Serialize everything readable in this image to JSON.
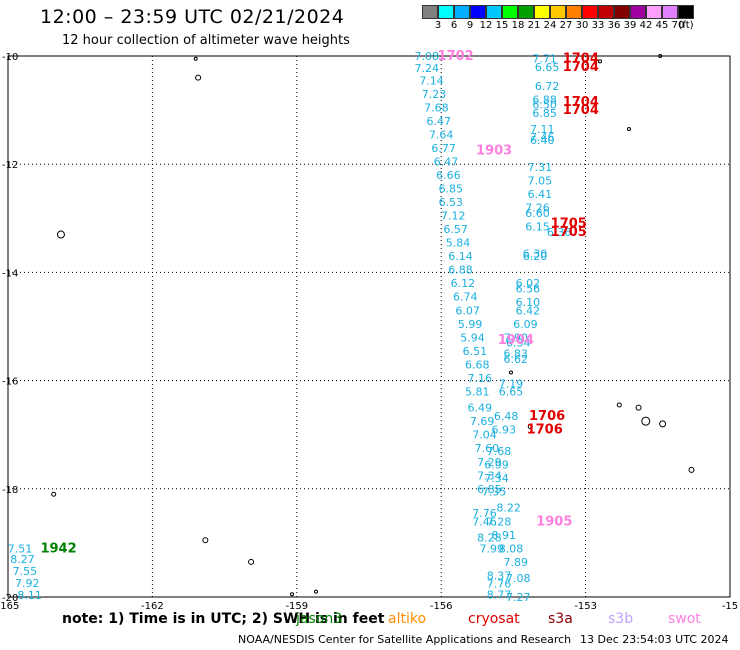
{
  "title": "12:00 – 23:59 UTC 02/21/2024",
  "subtitle": "12 hour collection of altimeter wave heights",
  "colorbar": {
    "colors": [
      "#808080",
      "#00ffff",
      "#00b0ff",
      "#0000ff",
      "#00c8ff",
      "#00ff00",
      "#00a000",
      "#ffff00",
      "#ffc800",
      "#ff8000",
      "#ff0000",
      "#c00000",
      "#800000",
      "#a000a0",
      "#ffa0ff",
      "#e080ff",
      "#000000"
    ],
    "ticks": [
      "3",
      "6",
      "9",
      "12",
      "15",
      "18",
      "21",
      "24",
      "27",
      "30",
      "33",
      "36",
      "39",
      "42",
      "45",
      "70",
      "(ft)"
    ]
  },
  "map": {
    "x_ticks": [
      "-165",
      "-162",
      "-159",
      "-156",
      "-153",
      "-15"
    ],
    "y_ticks": [
      "-10",
      "-12",
      "-14",
      "-16",
      "-18",
      "-20"
    ],
    "colors": {
      "cyan": "#1ab0e0",
      "red": "#e00000",
      "pink": "#ff80e0",
      "green": "#008000"
    }
  },
  "wave_labels": [
    {
      "text": "7.08",
      "lon": -156.3,
      "lat": -10.0,
      "c": "cyan"
    },
    {
      "text": "7.24",
      "lon": -156.3,
      "lat": -10.22,
      "c": "cyan"
    },
    {
      "text": "7.14",
      "lon": -156.2,
      "lat": -10.45,
      "c": "cyan"
    },
    {
      "text": "7.23",
      "lon": -156.15,
      "lat": -10.7,
      "c": "cyan"
    },
    {
      "text": "7.68",
      "lon": -156.1,
      "lat": -10.95,
      "c": "cyan"
    },
    {
      "text": "6.47",
      "lon": -156.05,
      "lat": -11.2,
      "c": "cyan"
    },
    {
      "text": "7.64",
      "lon": -156.0,
      "lat": -11.45,
      "c": "cyan"
    },
    {
      "text": "6.77",
      "lon": -155.95,
      "lat": -11.7,
      "c": "cyan"
    },
    {
      "text": "6.47",
      "lon": -155.9,
      "lat": -11.95,
      "c": "cyan"
    },
    {
      "text": "6.66",
      "lon": -155.85,
      "lat": -12.2,
      "c": "cyan"
    },
    {
      "text": "6.85",
      "lon": -155.8,
      "lat": -12.45,
      "c": "cyan"
    },
    {
      "text": "6.53",
      "lon": -155.8,
      "lat": -12.7,
      "c": "cyan"
    },
    {
      "text": "7.12",
      "lon": -155.75,
      "lat": -12.95,
      "c": "cyan"
    },
    {
      "text": "6.57",
      "lon": -155.7,
      "lat": -13.2,
      "c": "cyan"
    },
    {
      "text": "5.84",
      "lon": -155.65,
      "lat": -13.45,
      "c": "cyan"
    },
    {
      "text": "6.14",
      "lon": -155.6,
      "lat": -13.7,
      "c": "cyan"
    },
    {
      "text": "6.88",
      "lon": -155.6,
      "lat": -13.95,
      "c": "cyan"
    },
    {
      "text": "6.12",
      "lon": -155.55,
      "lat": -14.2,
      "c": "cyan"
    },
    {
      "text": "6.74",
      "lon": -155.5,
      "lat": -14.45,
      "c": "cyan"
    },
    {
      "text": "6.07",
      "lon": -155.45,
      "lat": -14.7,
      "c": "cyan"
    },
    {
      "text": "5.99",
      "lon": -155.4,
      "lat": -14.95,
      "c": "cyan"
    },
    {
      "text": "5.94",
      "lon": -155.35,
      "lat": -15.2,
      "c": "cyan"
    },
    {
      "text": "6.51",
      "lon": -155.3,
      "lat": -15.45,
      "c": "cyan"
    },
    {
      "text": "6.68",
      "lon": -155.25,
      "lat": -15.7,
      "c": "cyan"
    },
    {
      "text": "7.16",
      "lon": -155.2,
      "lat": -15.95,
      "c": "cyan"
    },
    {
      "text": "5.81",
      "lon": -155.25,
      "lat": -16.2,
      "c": "cyan"
    },
    {
      "text": "6.49",
      "lon": -155.2,
      "lat": -16.5,
      "c": "cyan"
    },
    {
      "text": "7.69",
      "lon": -155.15,
      "lat": -16.75,
      "c": "cyan"
    },
    {
      "text": "7.04",
      "lon": -155.1,
      "lat": -17.0,
      "c": "cyan"
    },
    {
      "text": "7.60",
      "lon": -155.05,
      "lat": -17.25,
      "c": "cyan"
    },
    {
      "text": "7.29",
      "lon": -155.0,
      "lat": -17.5,
      "c": "cyan"
    },
    {
      "text": "7.34",
      "lon": -155.0,
      "lat": -17.75,
      "c": "cyan"
    },
    {
      "text": "6.85",
      "lon": -155.0,
      "lat": -18.0,
      "c": "cyan"
    },
    {
      "text": "7.76",
      "lon": -155.1,
      "lat": -18.45,
      "c": "cyan"
    },
    {
      "text": "7.46",
      "lon": -155.1,
      "lat": -18.6,
      "c": "cyan"
    },
    {
      "text": "8.28",
      "lon": -155.0,
      "lat": -18.9,
      "c": "cyan"
    },
    {
      "text": "7.99",
      "lon": -154.95,
      "lat": -19.1,
      "c": "cyan"
    },
    {
      "text": "8.37",
      "lon": -154.8,
      "lat": -19.6,
      "c": "cyan"
    },
    {
      "text": "7.76",
      "lon": -154.8,
      "lat": -19.75,
      "c": "cyan"
    },
    {
      "text": "8.77",
      "lon": -154.8,
      "lat": -19.95,
      "c": "cyan"
    },
    {
      "text": "7.71",
      "lon": -153.85,
      "lat": -10.05,
      "c": "cyan"
    },
    {
      "text": "6.65",
      "lon": -153.8,
      "lat": -10.2,
      "c": "cyan"
    },
    {
      "text": "6.72",
      "lon": -153.8,
      "lat": -10.55,
      "c": "cyan"
    },
    {
      "text": "6.88",
      "lon": -153.85,
      "lat": -10.8,
      "c": "cyan"
    },
    {
      "text": "6.50",
      "lon": -153.85,
      "lat": -10.9,
      "c": "cyan"
    },
    {
      "text": "6.85",
      "lon": -153.85,
      "lat": -11.05,
      "c": "cyan"
    },
    {
      "text": "7.11",
      "lon": -153.9,
      "lat": -11.35,
      "c": "cyan"
    },
    {
      "text": "7.46",
      "lon": -153.9,
      "lat": -11.5,
      "c": "cyan"
    },
    {
      "text": "6.40",
      "lon": -153.9,
      "lat": -11.55,
      "c": "cyan"
    },
    {
      "text": "7.31",
      "lon": -153.95,
      "lat": -12.05,
      "c": "cyan"
    },
    {
      "text": "7.05",
      "lon": -153.95,
      "lat": -12.3,
      "c": "cyan"
    },
    {
      "text": "6.41",
      "lon": -153.95,
      "lat": -12.55,
      "c": "cyan"
    },
    {
      "text": "7.26",
      "lon": -154.0,
      "lat": -12.8,
      "c": "cyan"
    },
    {
      "text": "6.60",
      "lon": -154.0,
      "lat": -12.9,
      "c": "cyan"
    },
    {
      "text": "6.15",
      "lon": -154.0,
      "lat": -13.15,
      "c": "cyan"
    },
    {
      "text": "6.36",
      "lon": -153.55,
      "lat": -13.25,
      "c": "cyan"
    },
    {
      "text": "6.30",
      "lon": -154.05,
      "lat": -13.65,
      "c": "cyan"
    },
    {
      "text": "6.20",
      "lon": -154.05,
      "lat": -13.7,
      "c": "cyan"
    },
    {
      "text": "6.02",
      "lon": -154.2,
      "lat": -14.2,
      "c": "cyan"
    },
    {
      "text": "6.56",
      "lon": -154.2,
      "lat": -14.3,
      "c": "cyan"
    },
    {
      "text": "6.10",
      "lon": -154.2,
      "lat": -14.55,
      "c": "cyan"
    },
    {
      "text": "6.42",
      "lon": -154.2,
      "lat": -14.7,
      "c": "cyan"
    },
    {
      "text": "6.09",
      "lon": -154.25,
      "lat": -14.95,
      "c": "cyan"
    },
    {
      "text": "7.90",
      "lon": -154.45,
      "lat": -15.2,
      "c": "cyan"
    },
    {
      "text": "6.34",
      "lon": -154.4,
      "lat": -15.3,
      "c": "cyan"
    },
    {
      "text": "6.83",
      "lon": -154.45,
      "lat": -15.5,
      "c": "cyan"
    },
    {
      "text": "6.62",
      "lon": -154.45,
      "lat": -15.6,
      "c": "cyan"
    },
    {
      "text": "7.19",
      "lon": -154.55,
      "lat": -16.05,
      "c": "cyan"
    },
    {
      "text": "6.65",
      "lon": -154.55,
      "lat": -16.2,
      "c": "cyan"
    },
    {
      "text": "6.48",
      "lon": -154.65,
      "lat": -16.65,
      "c": "cyan"
    },
    {
      "text": "6.93",
      "lon": -154.7,
      "lat": -16.9,
      "c": "cyan"
    },
    {
      "text": "7.68",
      "lon": -154.8,
      "lat": -17.3,
      "c": "cyan"
    },
    {
      "text": "6.99",
      "lon": -154.85,
      "lat": -17.55,
      "c": "cyan"
    },
    {
      "text": "7.34",
      "lon": -154.85,
      "lat": -17.8,
      "c": "cyan"
    },
    {
      "text": "7.35",
      "lon": -154.9,
      "lat": -18.05,
      "c": "cyan"
    },
    {
      "text": "8.22",
      "lon": -154.6,
      "lat": -18.35,
      "c": "cyan"
    },
    {
      "text": "7.28",
      "lon": -154.8,
      "lat": -18.6,
      "c": "cyan"
    },
    {
      "text": "8.91",
      "lon": -154.7,
      "lat": -18.85,
      "c": "cyan"
    },
    {
      "text": "8.08",
      "lon": -154.55,
      "lat": -19.1,
      "c": "cyan"
    },
    {
      "text": "7.89",
      "lon": -154.45,
      "lat": -19.35,
      "c": "cyan"
    },
    {
      "text": "7.08",
      "lon": -154.4,
      "lat": -19.65,
      "c": "cyan"
    },
    {
      "text": "7.27",
      "lon": -154.4,
      "lat": -20.0,
      "c": "cyan"
    },
    {
      "text": "7.51",
      "lon": -164.75,
      "lat": -19.1,
      "c": "cyan"
    },
    {
      "text": "8.27",
      "lon": -164.7,
      "lat": -19.3,
      "c": "cyan"
    },
    {
      "text": "7.55",
      "lon": -164.65,
      "lat": -19.52,
      "c": "cyan"
    },
    {
      "text": "7.92",
      "lon": -164.6,
      "lat": -19.74,
      "c": "cyan"
    },
    {
      "text": "8.11",
      "lon": -164.55,
      "lat": -19.96,
      "c": "cyan"
    },
    {
      "text": "1702",
      "lon": -155.7,
      "lat": -10.0,
      "c": "pink"
    },
    {
      "text": "1903",
      "lon": -154.9,
      "lat": -11.75,
      "c": "pink"
    },
    {
      "text": "1904",
      "lon": -154.45,
      "lat": -15.25,
      "c": "pink"
    },
    {
      "text": "1905",
      "lon": -153.65,
      "lat": -18.6,
      "c": "pink"
    },
    {
      "text": "1704",
      "lon": -153.1,
      "lat": -10.05,
      "c": "red"
    },
    {
      "text": "1704",
      "lon": -153.1,
      "lat": -10.2,
      "c": "red"
    },
    {
      "text": "1704",
      "lon": -153.1,
      "lat": -10.85,
      "c": "red"
    },
    {
      "text": "1704",
      "lon": -153.1,
      "lat": -11.0,
      "c": "red"
    },
    {
      "text": "1705",
      "lon": -153.35,
      "lat": -13.1,
      "c": "red"
    },
    {
      "text": "1705",
      "lon": -153.35,
      "lat": -13.25,
      "c": "red"
    },
    {
      "text": "1706",
      "lon": -153.8,
      "lat": -16.65,
      "c": "red"
    },
    {
      "text": "1706",
      "lon": -153.85,
      "lat": -16.9,
      "c": "red"
    },
    {
      "text": "1942",
      "lon": -163.95,
      "lat": -19.1,
      "c": "green"
    }
  ],
  "footer": {
    "note": "note:  1) Time is in UTC; 2) SWH is in feet",
    "legend": [
      {
        "label": "jason3",
        "color": "#008000"
      },
      {
        "label": "altiko",
        "color": "#ff8c00"
      },
      {
        "label": "cryosat",
        "color": "#e00000"
      },
      {
        "label": "s3a",
        "color": "#900000"
      },
      {
        "label": "s3b",
        "color": "#c0a0ff"
      },
      {
        "label": "swot",
        "color": "#ff80e0"
      }
    ],
    "credit": "NOAA/NESDIS Center for Satellite Applications and Research",
    "generated": "13 Dec 23:54:03 UTC 2024"
  }
}
